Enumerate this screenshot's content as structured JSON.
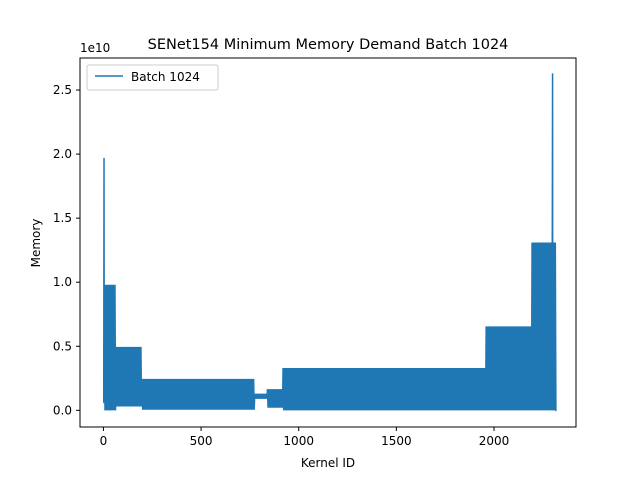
{
  "chart_data": {
    "type": "line",
    "title": "SENet154 Minimum Memory Demand Batch 1024",
    "xlabel": "Kernel ID",
    "ylabel": "Memory",
    "y_scale_label": "1e10",
    "xlim": [
      -120,
      2420
    ],
    "ylim": [
      -1.3,
      27.5
    ],
    "x_ticks": [
      0,
      500,
      1000,
      1500,
      2000
    ],
    "x_tick_labels": [
      "0",
      "500",
      "1000",
      "1500",
      "2000"
    ],
    "y_ticks": [
      0.0,
      5.0,
      10.0,
      15.0,
      20.0,
      25.0
    ],
    "y_tick_labels": [
      "0.0",
      "0.5",
      "1.0",
      "1.5",
      "2.0",
      "2.5"
    ],
    "legend_position": "top-left",
    "color": "#1f77b4",
    "series": [
      {
        "name": "Batch 1024",
        "x_range": [
          0,
          2320
        ],
        "segments": [
          {
            "x_start": 0,
            "x_end": 3,
            "high": 0.6,
            "low": 0.6
          },
          {
            "x_start": 3,
            "x_end": 5,
            "high": 19.7,
            "low": 3.2
          },
          {
            "x_start": 5,
            "x_end": 65,
            "high": 9.8,
            "low": 0.0
          },
          {
            "x_start": 65,
            "x_end": 198,
            "high": 4.95,
            "low": 0.3
          },
          {
            "x_start": 198,
            "x_end": 775,
            "high": 2.45,
            "low": 0.05
          },
          {
            "x_start": 775,
            "x_end": 840,
            "high": 1.3,
            "low": 0.9
          },
          {
            "x_start": 840,
            "x_end": 920,
            "high": 1.65,
            "low": 0.2
          },
          {
            "x_start": 920,
            "x_end": 1960,
            "high": 3.3,
            "low": 0.0
          },
          {
            "x_start": 1960,
            "x_end": 2195,
            "high": 6.55,
            "low": 0.0
          },
          {
            "x_start": 2195,
            "x_end": 2300,
            "high": 13.1,
            "low": 0.0
          },
          {
            "x_start": 2300,
            "x_end": 2302,
            "high": 26.3,
            "low": 0.0
          },
          {
            "x_start": 2302,
            "x_end": 2320,
            "high": 13.1,
            "low": 0.0
          }
        ]
      }
    ]
  }
}
